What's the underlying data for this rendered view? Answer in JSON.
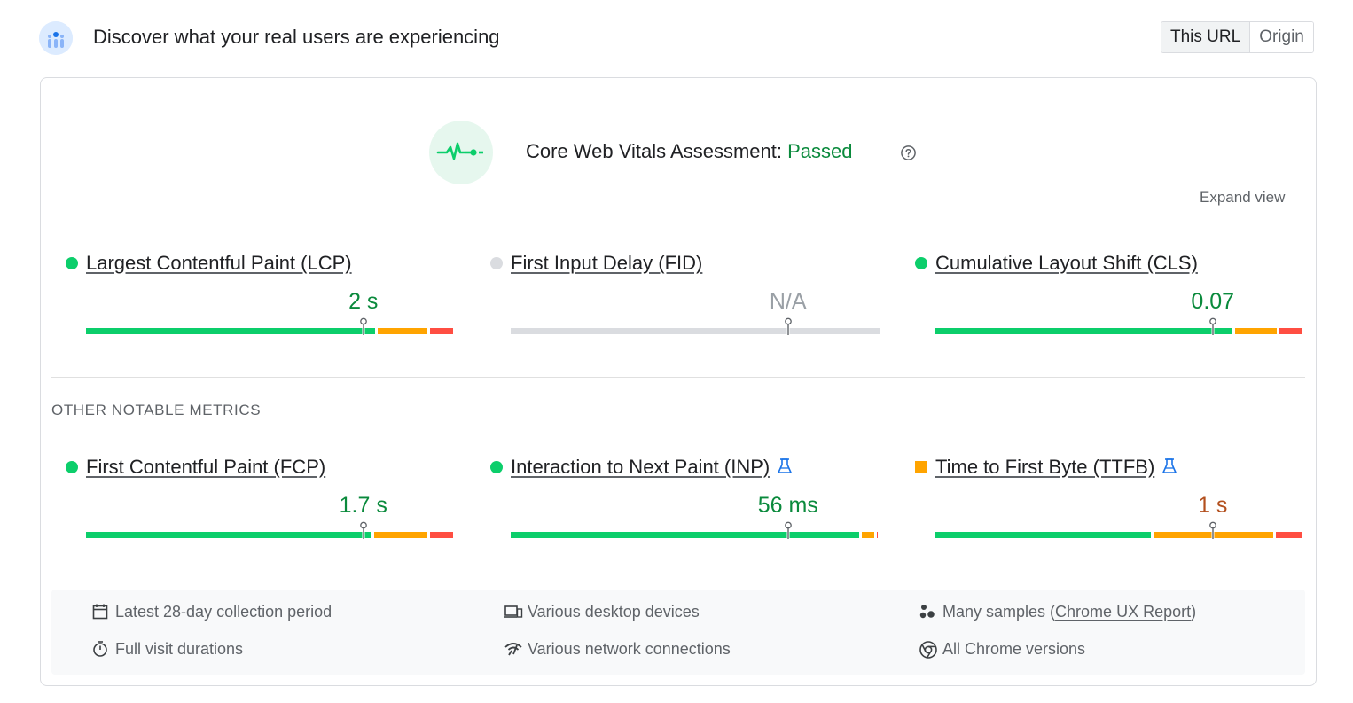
{
  "header": {
    "logo_icon": "crux-logo-icon",
    "title": "Discover what your real users are experiencing",
    "toggle": {
      "this_url": "This URL",
      "origin": "Origin",
      "selected": "This URL"
    }
  },
  "assessment": {
    "icon": "pulse-icon",
    "label": "Core Web Vitals Assessment:",
    "status": "Passed",
    "help_icon": "help-circle-icon",
    "expand": "Expand view"
  },
  "colors": {
    "good": "#0cce6b",
    "needs_improvement": "#ffa400",
    "poor": "#ff4e42",
    "na": "#dadce0",
    "good_text": "#0a8a3c",
    "ni_text": "#b3501e",
    "na_text": "#9aa0a6"
  },
  "core_metrics": [
    {
      "name": "Largest Contentful Paint (LCP)",
      "value": "2 s",
      "rating": "good",
      "good_pct": 79,
      "ni_pct": 14,
      "poor_pct": 7
    },
    {
      "name": "First Input Delay (FID)",
      "value": "N/A",
      "rating": "na",
      "good_pct": 0,
      "ni_pct": 0,
      "poor_pct": 0
    },
    {
      "name": "Cumulative Layout Shift (CLS)",
      "value": "0.07",
      "rating": "good",
      "good_pct": 81,
      "ni_pct": 12,
      "poor_pct": 7
    }
  ],
  "other_heading": "OTHER NOTABLE METRICS",
  "other_metrics": [
    {
      "name": "First Contentful Paint (FCP)",
      "value": "1.7 s",
      "rating": "good",
      "experimental": false,
      "good_pct": 78,
      "ni_pct": 15,
      "poor_pct": 7
    },
    {
      "name": "Interaction to Next Paint (INP)",
      "value": "56 ms",
      "rating": "good",
      "experimental": true,
      "good_pct": 95,
      "ni_pct": 4,
      "poor_pct": 1
    },
    {
      "name": "Time to First Byte (TTFB)",
      "value": "1 s",
      "rating": "needs_improvement",
      "experimental": true,
      "good_pct": 59,
      "ni_pct": 33,
      "poor_pct": 8
    }
  ],
  "footer": {
    "period": "Latest 28-day collection period",
    "devices": "Various desktop devices",
    "samples_prefix": "Many samples (",
    "samples_link": "Chrome UX Report",
    "samples_suffix": ")",
    "durations": "Full visit durations",
    "network": "Various network connections",
    "versions": "All Chrome versions"
  }
}
